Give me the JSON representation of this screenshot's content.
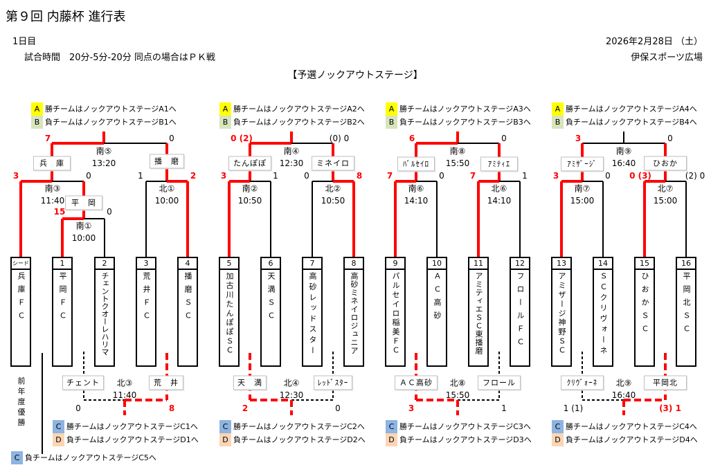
{
  "header": {
    "title": "第９回 内藤杯 進行表",
    "day": "1日目",
    "rules": "試合時間　20分-5分-20分 同点の場合はＰＫ戦",
    "date": "2026年2月28日 （土）",
    "venue": "伊保スポーツ広場",
    "stage": "【予選ノックアウトステージ】"
  },
  "colors": {
    "win_line": "#ff0000",
    "legend_a": "#ffff00",
    "legend_b": "#d8e4bc",
    "legend_c": "#8db4e2",
    "legend_d": "#fcd5b4"
  },
  "top_legends": [
    {
      "a_key": "A",
      "a_text": "勝チームはノックアウトステージA1へ",
      "b_key": "B",
      "b_text": "負チームはノックアウトステージB1へ"
    },
    {
      "a_key": "A",
      "a_text": "勝チームはノックアウトステージA2へ",
      "b_key": "B",
      "b_text": "負チームはノックアウトステージB2へ"
    },
    {
      "a_key": "A",
      "a_text": "勝チームはノックアウトステージA3へ",
      "b_key": "B",
      "b_text": "負チームはノックアウトステージB3へ"
    },
    {
      "a_key": "A",
      "a_text": "勝チームはノックアウトステージA4へ",
      "b_key": "B",
      "b_text": "負チームはノックアウトステージB4へ"
    }
  ],
  "bottom_legends": [
    {
      "c_key": "C",
      "c_text": "勝チームはノックアウトステージC1へ",
      "d_key": "D",
      "d_text": "負チームはノックアウトステージD1へ"
    },
    {
      "c_key": "C",
      "c_text": "勝チームはノックアウトステージC2へ",
      "d_key": "D",
      "d_text": "負チームはノックアウトステージD2へ"
    },
    {
      "c_key": "C",
      "c_text": "勝チームはノックアウトステージC3へ",
      "d_key": "D",
      "d_text": "負チームはノックアウトステージD3へ"
    },
    {
      "c_key": "C",
      "c_text": "勝チームはノックアウトステージC4へ",
      "d_key": "D",
      "d_text": "負チームはノックアウトステージD4へ"
    }
  ],
  "c5_legend": {
    "key": "C",
    "text": "負チームはノックアウトステージC5へ"
  },
  "previous_champion_label": "前年度優勝",
  "teams": [
    {
      "num": "シード",
      "name": "兵庫ＦＣ"
    },
    {
      "num": "1",
      "name": "平岡ＦＣ"
    },
    {
      "num": "2",
      "name": "チェントクオーレハリマ"
    },
    {
      "num": "3",
      "name": "荒井ＦＣ"
    },
    {
      "num": "4",
      "name": "播磨ＳＣ"
    },
    {
      "num": "5",
      "name": "加古川たんぽぽＳＣ"
    },
    {
      "num": "6",
      "name": "天満ＳＣ"
    },
    {
      "num": "7",
      "name": "高砂レッドスター"
    },
    {
      "num": "8",
      "name": "高砂ミネイロジュニア"
    },
    {
      "num": "9",
      "name": "パルセイロ稲美ＦＣ"
    },
    {
      "num": "10",
      "name": "ＡＣ高砂"
    },
    {
      "num": "11",
      "name": "アミティエＳＣ東播磨"
    },
    {
      "num": "12",
      "name": "フロールＦＣ"
    },
    {
      "num": "13",
      "name": "アミザージ神野ＳＣ"
    },
    {
      "num": "14",
      "name": "ＳＣクリヴォーネ"
    },
    {
      "num": "15",
      "name": "ひおかＳＣ"
    },
    {
      "num": "16",
      "name": "平岡北ＳＣ"
    }
  ],
  "matches": [
    {
      "id": "南①",
      "time": "10:00"
    },
    {
      "id": "北①",
      "time": "10:00"
    },
    {
      "id": "南③",
      "time": "11:40"
    },
    {
      "id": "南⑤",
      "time": "13:20"
    },
    {
      "id": "南②",
      "time": "10:50"
    },
    {
      "id": "北②",
      "time": "10:50"
    },
    {
      "id": "南④",
      "time": "12:30"
    },
    {
      "id": "南⑥",
      "time": "14:10"
    },
    {
      "id": "北⑥",
      "time": "14:10"
    },
    {
      "id": "南⑧",
      "time": "15:50"
    },
    {
      "id": "南⑦",
      "time": "15:00"
    },
    {
      "id": "北⑦",
      "time": "15:00"
    },
    {
      "id": "南⑨",
      "time": "16:40"
    },
    {
      "id": "北③",
      "time": "11:40"
    },
    {
      "id": "北④",
      "time": "12:30"
    },
    {
      "id": "北⑧",
      "time": "15:50"
    },
    {
      "id": "北⑨",
      "time": "16:40"
    }
  ],
  "winner_boxes": [
    "兵　庫",
    "播　磨",
    "平　岡",
    "たんぽぽ",
    "ミネイロ",
    "ﾊﾞﾙｾｲﾛ",
    "ｱﾐﾃｨｴ",
    "ｱﾐｻﾞｰｼﾞ",
    "ひおか"
  ],
  "loser_boxes": [
    "チェント",
    "荒　井",
    "天　満",
    "ﾚｯﾄﾞｽﾀｰ",
    "ＡＣ高砂",
    "フロール",
    "ｸﾘｳﾞｫｰﾈ",
    "平岡北"
  ],
  "scores": [
    {
      "v": "7",
      "win": true
    },
    {
      "v": "0",
      "win": false
    },
    {
      "v": "3",
      "win": true
    },
    {
      "v": "0",
      "win": false
    },
    {
      "v": "1",
      "win": false
    },
    {
      "v": "2",
      "win": true
    },
    {
      "v": "15",
      "win": true
    },
    {
      "v": "0",
      "win": false
    },
    {
      "v": "0 (2)",
      "win": true
    },
    {
      "v": "(0) 0",
      "win": false
    },
    {
      "v": "3",
      "win": true
    },
    {
      "v": "1",
      "win": false
    },
    {
      "v": "0",
      "win": false
    },
    {
      "v": "8",
      "win": true
    },
    {
      "v": "6",
      "win": true
    },
    {
      "v": "0",
      "win": false
    },
    {
      "v": "7",
      "win": true
    },
    {
      "v": "0",
      "win": false
    },
    {
      "v": "7",
      "win": true
    },
    {
      "v": "1",
      "win": false
    },
    {
      "v": "3",
      "win": true
    },
    {
      "v": "0",
      "win": false
    },
    {
      "v": "3",
      "win": true
    },
    {
      "v": "0",
      "win": false
    },
    {
      "v": "0 (3)",
      "win": true
    },
    {
      "v": "(2) 0",
      "win": false
    },
    {
      "v": "0",
      "win": false
    },
    {
      "v": "8",
      "win": true
    },
    {
      "v": "2",
      "win": true
    },
    {
      "v": "0",
      "win": false
    },
    {
      "v": "3",
      "win": true
    },
    {
      "v": "1",
      "win": false
    },
    {
      "v": "1 (1)",
      "win": false
    },
    {
      "v": "(3) 1",
      "win": true
    }
  ]
}
